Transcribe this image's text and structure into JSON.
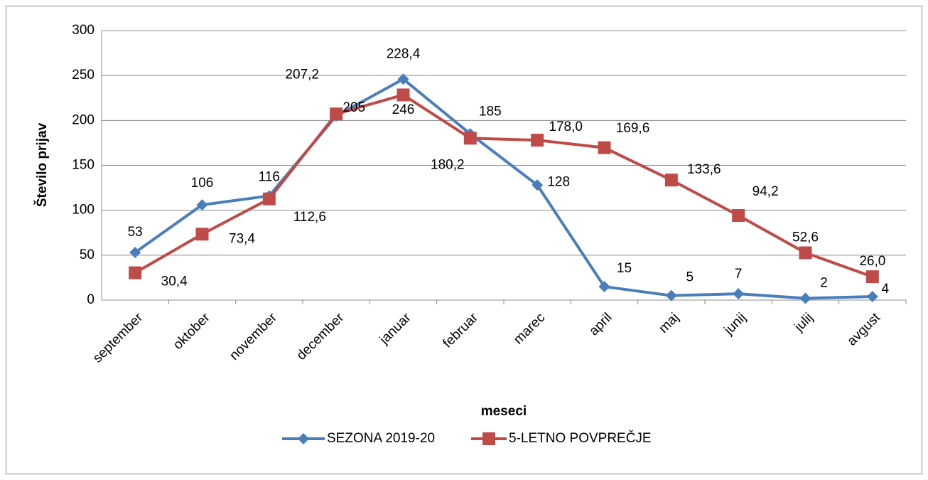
{
  "chart_data": {
    "type": "line",
    "categories": [
      "september",
      "oktober",
      "november",
      "december",
      "januar",
      "februar",
      "marec",
      "april",
      "maj",
      "junij",
      "julij",
      "avgust"
    ],
    "series": [
      {
        "name": "SEZONA 2019-20",
        "color": "#4a7ebb",
        "marker": "diamond",
        "values": [
          53,
          106,
          116,
          205,
          246,
          185,
          128,
          15,
          5,
          7,
          2,
          4
        ]
      },
      {
        "name": "5-LETNO POVPREČJE",
        "color": "#be4b48",
        "marker": "square",
        "values": [
          30.4,
          73.4,
          112.6,
          207.2,
          228.4,
          180.2,
          178.0,
          169.6,
          133.6,
          94.2,
          52.6,
          26.0
        ],
        "value_labels": [
          "30,4",
          "73,4",
          "112,6",
          "207,2",
          "228,4",
          "180,2",
          "178,0",
          "169,6",
          "133,6",
          "94,2",
          "52,6",
          "26,0"
        ]
      }
    ],
    "x_label": "meseci",
    "y_label": "Število prijav",
    "ylim": [
      0,
      300
    ],
    "yticks": [
      0,
      50,
      100,
      150,
      200,
      250,
      300
    ],
    "grid": true,
    "legend": "bottom"
  }
}
